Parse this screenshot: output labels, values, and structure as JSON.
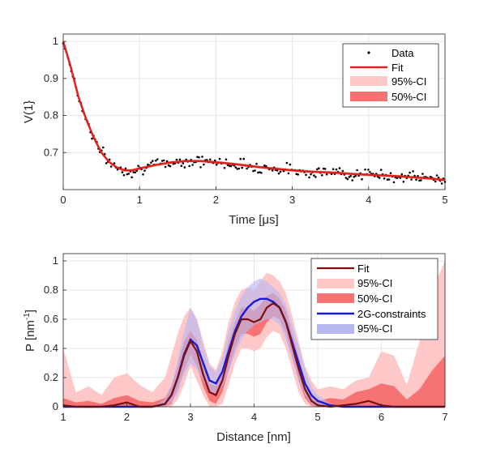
{
  "chart_data": [
    {
      "type": "scatter",
      "xlabel": "Time [μs]",
      "ylabel": "V(1}",
      "xlim": [
        0,
        5
      ],
      "ylim": [
        0.6,
        1.02
      ],
      "xticks": [
        "0",
        "1",
        "2",
        "3",
        "4",
        "5"
      ],
      "yticks": [
        "0.7",
        "0.8",
        "0.9",
        "1"
      ],
      "grid": true,
      "legend_position": "top-right",
      "legend": [
        "Data",
        "Fit",
        "95%-CI",
        "50%-CI"
      ],
      "fit": {
        "x": [
          0,
          0.1,
          0.2,
          0.3,
          0.4,
          0.5,
          0.6,
          0.7,
          0.8,
          0.9,
          1.0,
          1.2,
          1.4,
          1.6,
          1.8,
          2.0,
          2.2,
          2.4,
          2.6,
          2.8,
          3.0,
          3.2,
          3.4,
          3.6,
          3.8,
          4.0,
          4.2,
          4.4,
          4.6,
          4.8,
          5.0
        ],
        "y": [
          1.0,
          0.93,
          0.85,
          0.79,
          0.74,
          0.7,
          0.675,
          0.66,
          0.652,
          0.652,
          0.657,
          0.666,
          0.673,
          0.677,
          0.677,
          0.674,
          0.67,
          0.665,
          0.66,
          0.656,
          0.652,
          0.649,
          0.647,
          0.645,
          0.642,
          0.64,
          0.638,
          0.636,
          0.633,
          0.63,
          0.626
        ]
      },
      "ci95": {
        "lower": [
          0.995,
          0.925,
          0.846,
          0.786,
          0.736,
          0.696,
          0.671,
          0.656,
          0.648,
          0.648,
          0.653,
          0.662,
          0.669,
          0.673,
          0.673,
          0.67,
          0.666,
          0.661,
          0.656,
          0.652,
          0.648,
          0.645,
          0.643,
          0.641,
          0.638,
          0.636,
          0.634,
          0.632,
          0.629,
          0.626,
          0.622
        ],
        "upper": [
          1.005,
          0.935,
          0.854,
          0.794,
          0.744,
          0.704,
          0.679,
          0.664,
          0.656,
          0.656,
          0.661,
          0.67,
          0.677,
          0.681,
          0.681,
          0.678,
          0.674,
          0.669,
          0.664,
          0.66,
          0.656,
          0.653,
          0.651,
          0.649,
          0.646,
          0.644,
          0.642,
          0.64,
          0.637,
          0.634,
          0.63
        ]
      },
      "ci50": {
        "lower": [
          0.998,
          0.928,
          0.848,
          0.788,
          0.738,
          0.698,
          0.673,
          0.658,
          0.65,
          0.65,
          0.655,
          0.664,
          0.671,
          0.675,
          0.675,
          0.672,
          0.668,
          0.663,
          0.658,
          0.654,
          0.65,
          0.647,
          0.645,
          0.643,
          0.64,
          0.638,
          0.636,
          0.634,
          0.631,
          0.628,
          0.624
        ],
        "upper": [
          1.002,
          0.932,
          0.852,
          0.792,
          0.742,
          0.702,
          0.677,
          0.662,
          0.654,
          0.654,
          0.659,
          0.668,
          0.675,
          0.679,
          0.679,
          0.676,
          0.672,
          0.667,
          0.662,
          0.658,
          0.654,
          0.651,
          0.649,
          0.647,
          0.644,
          0.642,
          0.64,
          0.638,
          0.635,
          0.632,
          0.628
        ]
      },
      "data_noise": 0.012,
      "data_n": 240
    },
    {
      "type": "line",
      "xlabel": "Distance [nm]",
      "ylabel": "P [nm",
      "ylabel_sup": "-1",
      "ylabel_end": "]",
      "xlim": [
        1,
        7
      ],
      "ylim": [
        0,
        1.05
      ],
      "xticks": [
        "1",
        "2",
        "3",
        "4",
        "5",
        "6",
        "7"
      ],
      "yticks": [
        "0",
        "0.2",
        "0.4",
        "0.6",
        "0.8",
        "1"
      ],
      "grid": true,
      "legend_position": "top-right",
      "legend": [
        "Fit",
        "95%-CI",
        "50%-CI",
        "2G-constraints",
        "95%-CI"
      ],
      "x": [
        1.0,
        1.2,
        1.4,
        1.6,
        1.8,
        2.0,
        2.2,
        2.4,
        2.6,
        2.7,
        2.8,
        2.9,
        3.0,
        3.1,
        3.2,
        3.3,
        3.4,
        3.5,
        3.6,
        3.7,
        3.8,
        3.9,
        4.0,
        4.1,
        4.2,
        4.3,
        4.4,
        4.5,
        4.6,
        4.7,
        4.8,
        4.9,
        5.0,
        5.2,
        5.4,
        5.6,
        5.8,
        6.0,
        6.2,
        6.4,
        6.6,
        6.8,
        7.0
      ],
      "fit": [
        0.01,
        0.0,
        0.0,
        0.0,
        0.01,
        0.03,
        0.0,
        0.0,
        0.02,
        0.08,
        0.2,
        0.35,
        0.45,
        0.38,
        0.22,
        0.1,
        0.08,
        0.18,
        0.35,
        0.5,
        0.6,
        0.6,
        0.58,
        0.6,
        0.68,
        0.71,
        0.68,
        0.58,
        0.42,
        0.26,
        0.12,
        0.04,
        0.01,
        0.0,
        0.01,
        0.02,
        0.04,
        0.01,
        0.0,
        0.0,
        0.0,
        0.0,
        0.0
      ],
      "ci95_upper": [
        0.4,
        0.1,
        0.14,
        0.08,
        0.2,
        0.23,
        0.15,
        0.1,
        0.2,
        0.35,
        0.5,
        0.62,
        0.68,
        0.6,
        0.45,
        0.3,
        0.25,
        0.38,
        0.58,
        0.72,
        0.8,
        0.82,
        0.8,
        0.86,
        0.92,
        0.9,
        0.86,
        0.78,
        0.62,
        0.45,
        0.28,
        0.18,
        0.12,
        0.14,
        0.12,
        0.18,
        0.2,
        0.38,
        0.35,
        0.15,
        0.45,
        0.8,
        1.0
      ],
      "ci95_lower": [
        0,
        0,
        0,
        0,
        0,
        0,
        0,
        0,
        0,
        0,
        0.05,
        0.15,
        0.28,
        0.18,
        0.08,
        0,
        0,
        0.02,
        0.15,
        0.3,
        0.4,
        0.4,
        0.38,
        0.4,
        0.48,
        0.52,
        0.5,
        0.4,
        0.25,
        0.1,
        0.02,
        0,
        0,
        0,
        0,
        0,
        0,
        0,
        0,
        0,
        0,
        0,
        0
      ],
      "ci50_upper": [
        0.06,
        0.03,
        0.04,
        0.02,
        0.06,
        0.08,
        0.04,
        0.03,
        0.06,
        0.14,
        0.28,
        0.45,
        0.52,
        0.46,
        0.3,
        0.16,
        0.14,
        0.26,
        0.44,
        0.58,
        0.68,
        0.68,
        0.66,
        0.7,
        0.76,
        0.78,
        0.74,
        0.66,
        0.5,
        0.34,
        0.18,
        0.08,
        0.04,
        0.06,
        0.05,
        0.1,
        0.12,
        0.16,
        0.14,
        0.05,
        0.12,
        0.25,
        0.35
      ],
      "ci50_lower": [
        0,
        0,
        0,
        0,
        0,
        0,
        0,
        0,
        0,
        0.02,
        0.12,
        0.25,
        0.36,
        0.28,
        0.14,
        0.04,
        0.02,
        0.1,
        0.25,
        0.4,
        0.5,
        0.5,
        0.48,
        0.5,
        0.58,
        0.62,
        0.6,
        0.5,
        0.34,
        0.18,
        0.06,
        0.01,
        0,
        0,
        0,
        0,
        0,
        0,
        0,
        0,
        0,
        0,
        0
      ],
      "g2_fit": [
        0,
        0,
        0,
        0,
        0,
        0,
        0,
        0,
        0.02,
        0.08,
        0.2,
        0.36,
        0.46,
        0.42,
        0.3,
        0.18,
        0.16,
        0.24,
        0.38,
        0.52,
        0.62,
        0.68,
        0.72,
        0.74,
        0.74,
        0.72,
        0.68,
        0.58,
        0.44,
        0.3,
        0.16,
        0.08,
        0.04,
        0.01,
        0,
        0,
        0,
        0,
        0,
        0,
        0,
        0,
        0
      ],
      "g2_ci95_upper": [
        0,
        0,
        0,
        0,
        0,
        0,
        0,
        0,
        0.05,
        0.15,
        0.32,
        0.52,
        0.68,
        0.6,
        0.42,
        0.28,
        0.24,
        0.34,
        0.52,
        0.66,
        0.76,
        0.82,
        0.86,
        0.88,
        0.86,
        0.82,
        0.78,
        0.7,
        0.56,
        0.42,
        0.26,
        0.14,
        0.08,
        0.02,
        0,
        0,
        0,
        0,
        0,
        0,
        0,
        0,
        0
      ],
      "g2_ci95_lower": [
        0,
        0,
        0,
        0,
        0,
        0,
        0,
        0,
        0,
        0.03,
        0.1,
        0.22,
        0.3,
        0.26,
        0.18,
        0.1,
        0.08,
        0.14,
        0.24,
        0.36,
        0.46,
        0.52,
        0.56,
        0.58,
        0.6,
        0.6,
        0.56,
        0.46,
        0.32,
        0.18,
        0.08,
        0.02,
        0,
        0,
        0,
        0,
        0,
        0,
        0,
        0,
        0,
        0,
        0
      ]
    }
  ],
  "colors": {
    "data": "#000000",
    "fit1": "#e0201c",
    "ci95_red": "#ffc8c8",
    "ci50_red": "#f77272",
    "fit2": "#7a0f10",
    "g2": "#1a1ad6",
    "g2_ci": "#b8b8f0"
  }
}
